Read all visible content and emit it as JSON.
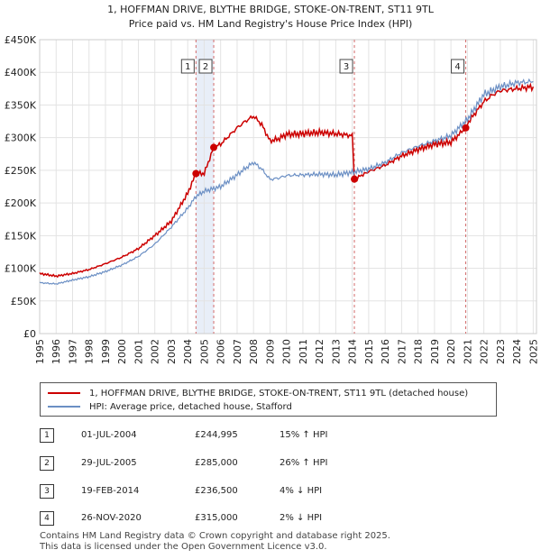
{
  "chart_data": {
    "type": "line",
    "title": "1, HOFFMAN DRIVE, BLYTHE BRIDGE, STOKE-ON-TRENT, ST11 9TL",
    "subtitle": "Price paid vs. HM Land Registry's House Price Index (HPI)",
    "xlabel": "",
    "ylabel": "",
    "xlim": [
      1995,
      2025.2
    ],
    "ylim": [
      0,
      450000
    ],
    "x_ticks": [
      "1995",
      "1996",
      "1997",
      "1998",
      "1999",
      "2000",
      "2001",
      "2002",
      "2003",
      "2004",
      "2005",
      "2006",
      "2007",
      "2008",
      "2009",
      "2010",
      "2011",
      "2012",
      "2013",
      "2014",
      "2015",
      "2016",
      "2017",
      "2018",
      "2019",
      "2020",
      "2021",
      "2022",
      "2023",
      "2024",
      "2025"
    ],
    "y_ticks": [
      {
        "value": 0,
        "label": "£0"
      },
      {
        "value": 50000,
        "label": "£50K"
      },
      {
        "value": 100000,
        "label": "£100K"
      },
      {
        "value": 150000,
        "label": "£150K"
      },
      {
        "value": 200000,
        "label": "£200K"
      },
      {
        "value": 250000,
        "label": "£250K"
      },
      {
        "value": 300000,
        "label": "£300K"
      },
      {
        "value": 350000,
        "label": "£350K"
      },
      {
        "value": 400000,
        "label": "£400K"
      },
      {
        "value": 450000,
        "label": "£450K"
      }
    ],
    "series": [
      {
        "name": "1, HOFFMAN DRIVE, BLYTHE BRIDGE, STOKE-ON-TRENT, ST11 9TL (detached house)",
        "color": "#cc0000",
        "x": [
          1995,
          1996,
          1997,
          1998,
          1999,
          2000,
          2001,
          2002,
          2003,
          2004,
          2004.5,
          2005,
          2005.58,
          2006,
          2007,
          2007.5,
          2008,
          2008.5,
          2009,
          2009.5,
          2010,
          2011,
          2012,
          2013,
          2014,
          2014.13,
          2015,
          2016,
          2017,
          2018,
          2019,
          2020,
          2020.9,
          2021,
          2022,
          2022.5,
          2023,
          2024,
          2025
        ],
        "values": [
          92000,
          88000,
          92000,
          98000,
          107000,
          117000,
          130000,
          150000,
          172000,
          215000,
          244995,
          245000,
          285000,
          290000,
          315000,
          325000,
          333000,
          320000,
          295000,
          298000,
          305000,
          306000,
          308000,
          306000,
          303000,
          236500,
          248000,
          258000,
          272000,
          282000,
          290000,
          293000,
          315000,
          322000,
          355000,
          365000,
          372000,
          375000,
          378000
        ]
      },
      {
        "name": "HPI: Average price, detached house, Stafford",
        "color": "#6b8fc4",
        "x": [
          1995,
          1996,
          1997,
          1998,
          1999,
          2000,
          2001,
          2002,
          2003,
          2004,
          2004.5,
          2005,
          2006,
          2007,
          2007.5,
          2008,
          2008.5,
          2009,
          2009.5,
          2010,
          2011,
          2012,
          2013,
          2014,
          2015,
          2016,
          2017,
          2018,
          2019,
          2020,
          2021,
          2022,
          2023,
          2024,
          2025
        ],
        "values": [
          78000,
          76000,
          82000,
          87000,
          95000,
          105000,
          118000,
          137000,
          163000,
          192000,
          210000,
          218000,
          225000,
          243000,
          253000,
          262000,
          252000,
          236000,
          238000,
          242000,
          243000,
          244000,
          243000,
          247000,
          252000,
          262000,
          277000,
          287000,
          295000,
          303000,
          328000,
          366000,
          378000,
          384000,
          386000
        ]
      }
    ],
    "sales": [
      {
        "label": "1",
        "x": 2004.5,
        "value": 244995
      },
      {
        "label": "2",
        "x": 2005.58,
        "value": 285000
      },
      {
        "label": "3",
        "x": 2014.13,
        "value": 236500
      },
      {
        "label": "4",
        "x": 2020.9,
        "value": 315000
      }
    ]
  },
  "legend": {
    "property_label": "1, HOFFMAN DRIVE, BLYTHE BRIDGE, STOKE-ON-TRENT, ST11 9TL (detached house)",
    "hpi_label": "HPI: Average price, detached house, Stafford",
    "property_color": "#cc0000",
    "hpi_color": "#6b8fc4"
  },
  "transactions": [
    {
      "num": "1",
      "date": "01-JUL-2004",
      "price": "£244,995",
      "hpi": "15% ↑ HPI"
    },
    {
      "num": "2",
      "date": "29-JUL-2005",
      "price": "£285,000",
      "hpi": "26% ↑ HPI"
    },
    {
      "num": "3",
      "date": "19-FEB-2014",
      "price": "£236,500",
      "hpi": "4% ↓ HPI"
    },
    {
      "num": "4",
      "date": "26-NOV-2020",
      "price": "£315,000",
      "hpi": "2% ↓ HPI"
    }
  ],
  "footer": {
    "line1": "Contains HM Land Registry data © Crown copyright and database right 2025.",
    "line2": "This data is licensed under the Open Government Licence v3.0."
  }
}
